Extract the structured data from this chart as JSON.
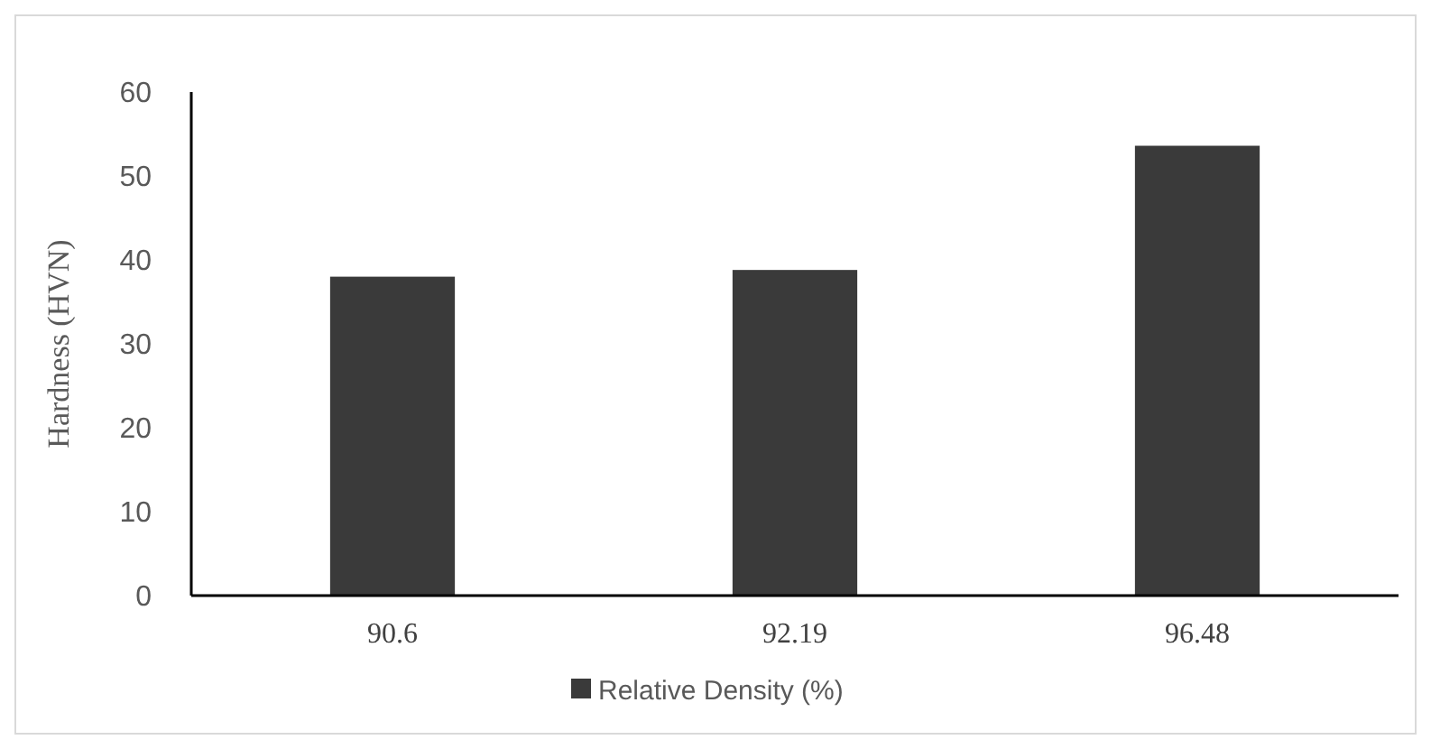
{
  "chart_data": {
    "type": "bar",
    "ylabel": "Hardness (HVN)",
    "categories": [
      "90.6",
      "92.19",
      "96.48"
    ],
    "series": [
      {
        "name": "Relative Density (%)",
        "color": "#3a3a3a",
        "values": [
          38.0,
          38.8,
          53.6
        ]
      }
    ],
    "ylim": [
      0,
      60
    ],
    "yticks": [
      0,
      10,
      20,
      30,
      40,
      50,
      60
    ],
    "grid": false,
    "legend": "bottom"
  }
}
